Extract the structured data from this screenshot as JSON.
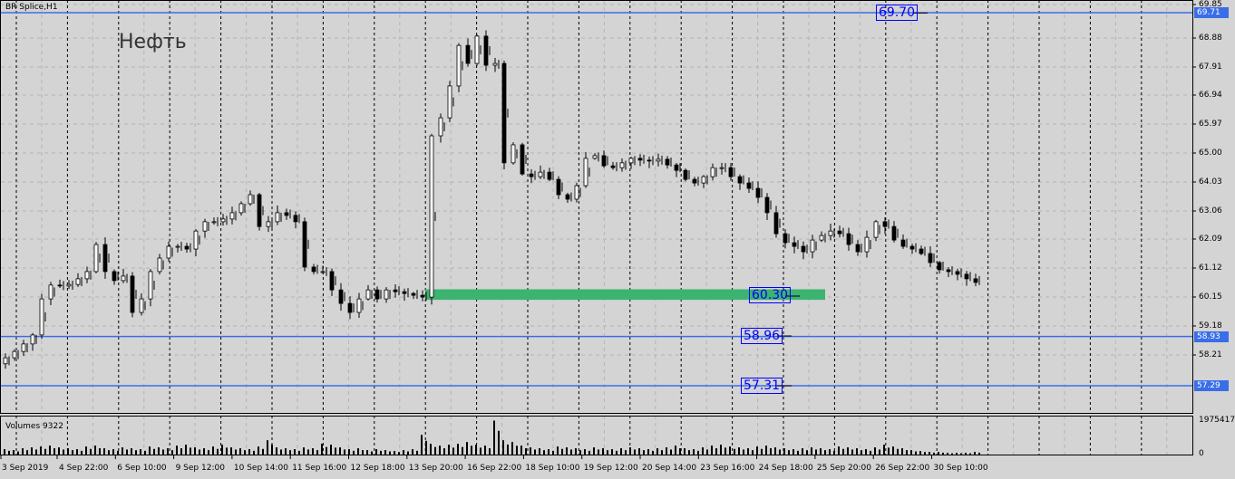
{
  "header": {
    "symbol": "BR Splice,H1",
    "note": "Нефть",
    "volumes_label": "Volumes 9322"
  },
  "price_axis": [
    "69.85",
    "68.88",
    "67.91",
    "66.94",
    "65.97",
    "65.00",
    "64.03",
    "63.06",
    "62.09",
    "61.12",
    "60.15",
    "59.18",
    "58.21"
  ],
  "volume_axis": [
    "1975417",
    "0"
  ],
  "time_axis": [
    "3 Sep 2019",
    "4 Sep 22:00",
    "6 Sep 10:00",
    "9 Sep 12:00",
    "10 Sep 14:00",
    "11 Sep 16:00",
    "12 Sep 18:00",
    "13 Sep 20:00",
    "16 Sep 22:00",
    "18 Sep 10:00",
    "19 Sep 12:00",
    "20 Sep 14:00",
    "23 Sep 16:00",
    "24 Sep 18:00",
    "25 Sep 20:00",
    "26 Sep 22:00",
    "30 Sep 10:00"
  ],
  "horizontal_lines": [
    {
      "price": "69.71",
      "color": "#3a6ee8"
    },
    {
      "price": "58.93",
      "color": "#3a6ee8"
    },
    {
      "price": "57.29",
      "color": "#3a6ee8"
    }
  ],
  "price_boxes": [
    "69.70",
    "60.30",
    "58.96",
    "57.31"
  ],
  "zone": {
    "color": "#3cb371",
    "low": 60.15,
    "high": 60.5
  },
  "colors": {
    "background": "#d4d4d4",
    "candles": "#000000",
    "line": "#3a6ee8",
    "box": "#0000ff"
  },
  "chart_data": {
    "type": "candlestick",
    "ylim": [
      56.5,
      70.1
    ],
    "closes": [
      58.22,
      58.43,
      58.68,
      58.98,
      60.18,
      60.64,
      60.61,
      60.66,
      60.85,
      61.09,
      61.99,
      61.09,
      60.79,
      60.94,
      59.73,
      60.18,
      61.09,
      61.54,
      61.93,
      61.93,
      61.84,
      62.44,
      62.75,
      62.75,
      62.84,
      63.05,
      63.35,
      63.65,
      62.59,
      62.75,
      63.05,
      62.96,
      62.75,
      61.24,
      61.09,
      61.09,
      60.48,
      60.03,
      59.73,
      60.18,
      60.48,
      60.18,
      60.48,
      60.42,
      60.36,
      60.3,
      60.24,
      65.61,
      66.21,
      67.27,
      68.62,
      68.02,
      68.93,
      67.96,
      68.02,
      64.71,
      65.31,
      64.34,
      64.25,
      64.4,
      64.16,
      63.65,
      63.5,
      63.95,
      64.86,
      64.95,
      64.61,
      64.55,
      64.71,
      64.86,
      64.8,
      64.77,
      64.83,
      64.64,
      64.46,
      64.16,
      64.04,
      64.25,
      64.55,
      64.55,
      64.25,
      64.04,
      63.86,
      63.56,
      63.05,
      62.35,
      62.05,
      61.93,
      61.75,
      62.14,
      62.29,
      62.44,
      62.35,
      61.99,
      61.75,
      62.23,
      62.75,
      62.59,
      62.14,
      61.93,
      61.84,
      61.69,
      61.39,
      61.15,
      61.09,
      61.0,
      60.85,
      60.73
    ],
    "volumes_thousands": [
      300,
      250,
      350,
      400,
      450,
      500,
      400,
      350,
      300,
      450,
      500,
      350,
      300,
      400,
      350,
      300,
      450,
      400,
      350,
      500,
      550,
      400,
      350,
      450,
      550,
      400,
      350,
      300,
      450,
      800,
      400,
      350,
      300,
      400,
      350,
      600,
      550,
      400,
      300,
      350,
      250,
      300,
      250,
      200,
      250,
      300,
      1100,
      600,
      500,
      550,
      600,
      700,
      550,
      500,
      1900,
      800,
      700,
      500,
      400,
      350,
      300,
      450,
      400,
      350,
      300,
      400,
      350,
      300,
      350,
      400,
      350,
      300,
      350,
      400,
      500,
      350,
      300,
      400,
      500,
      550,
      450,
      400,
      350,
      450,
      500,
      400,
      350,
      300,
      350,
      400,
      350,
      300,
      450,
      400,
      350,
      300,
      400,
      550,
      450,
      350,
      250,
      200,
      150,
      150,
      100,
      100,
      100,
      150
    ]
  }
}
